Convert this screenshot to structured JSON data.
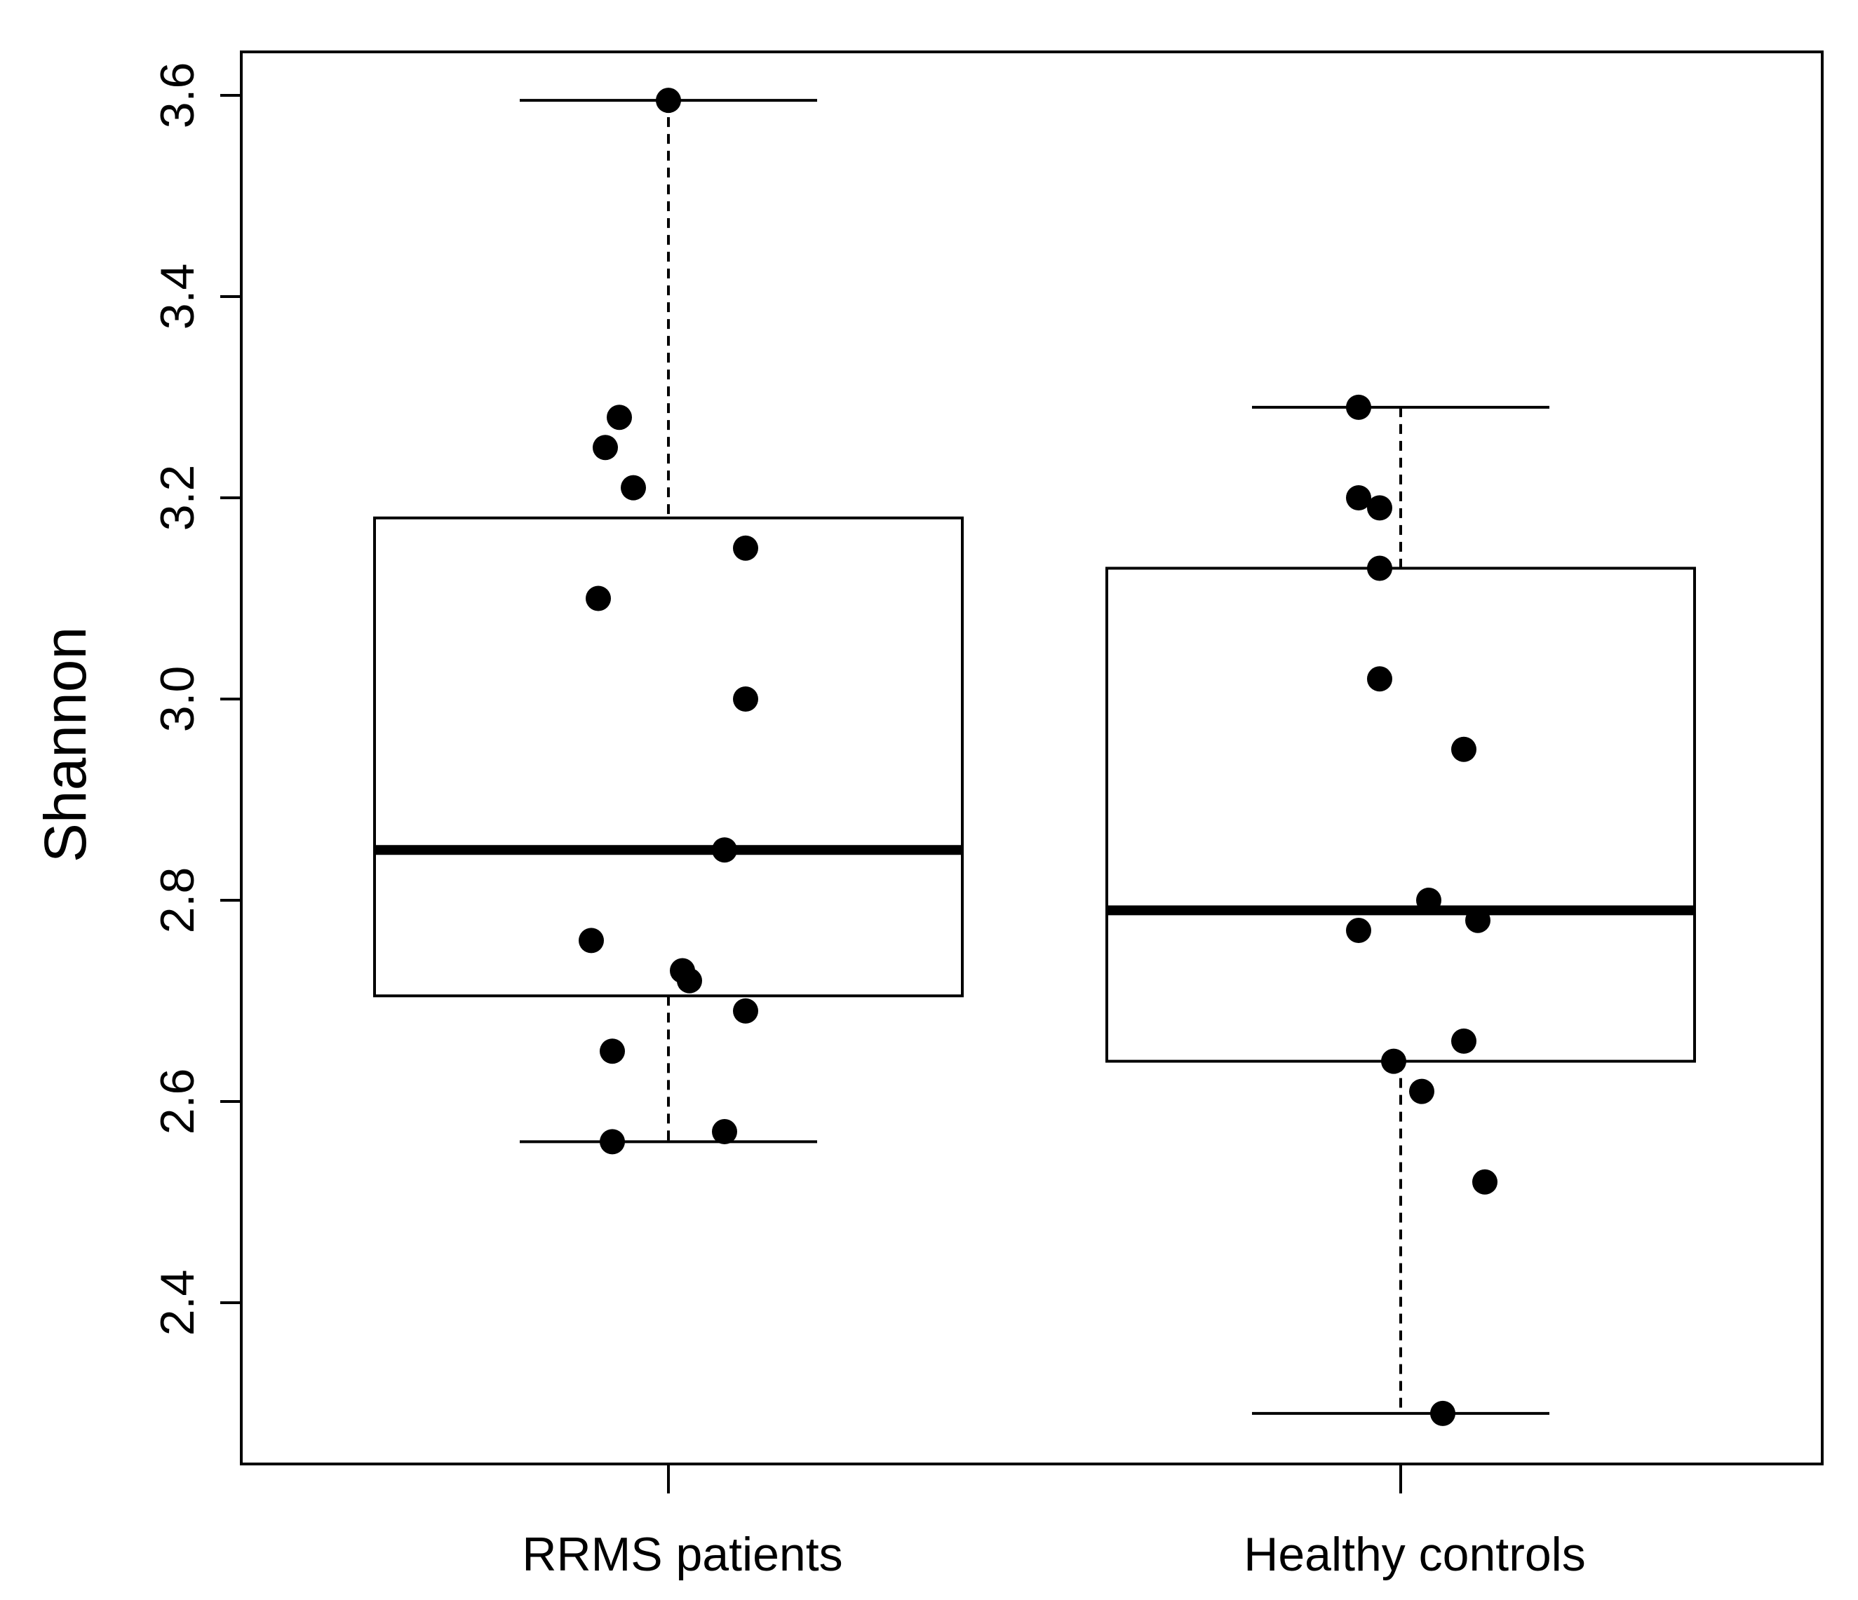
{
  "chart_data": {
    "type": "box",
    "title": "",
    "xlabel": "",
    "ylabel": "Shannon",
    "ylim": [
      2.24,
      3.65
    ],
    "yticks": [
      2.4,
      2.6,
      2.8,
      3.0,
      3.2,
      3.4,
      3.6
    ],
    "ytick_labels": [
      "2.4",
      "2.6",
      "2.8",
      "3.0",
      "3.2",
      "3.4",
      "3.6"
    ],
    "categories": [
      "RRMS patients",
      "Healthy controls"
    ],
    "boxes": [
      {
        "name": "RRMS patients",
        "whisker_low": 2.56,
        "q1": 2.705,
        "median": 2.85,
        "q3": 3.18,
        "whisker_high": 3.595,
        "points": [
          {
            "jitter": 0.0,
            "value": 3.595
          },
          {
            "jitter": -0.07,
            "value": 3.28
          },
          {
            "jitter": -0.09,
            "value": 3.25
          },
          {
            "jitter": -0.05,
            "value": 3.21
          },
          {
            "jitter": 0.11,
            "value": 3.15
          },
          {
            "jitter": -0.1,
            "value": 3.1
          },
          {
            "jitter": 0.11,
            "value": 3.0
          },
          {
            "jitter": 0.08,
            "value": 2.85
          },
          {
            "jitter": -0.11,
            "value": 2.76
          },
          {
            "jitter": 0.02,
            "value": 2.73
          },
          {
            "jitter": 0.03,
            "value": 2.72
          },
          {
            "jitter": 0.11,
            "value": 2.69
          },
          {
            "jitter": -0.08,
            "value": 2.65
          },
          {
            "jitter": 0.08,
            "value": 2.57
          },
          {
            "jitter": -0.08,
            "value": 2.56
          }
        ]
      },
      {
        "name": "Healthy controls",
        "whisker_low": 2.29,
        "q1": 2.64,
        "median": 2.79,
        "q3": 3.13,
        "whisker_high": 3.29,
        "points": [
          {
            "jitter": -0.06,
            "value": 3.29
          },
          {
            "jitter": -0.06,
            "value": 3.2
          },
          {
            "jitter": -0.03,
            "value": 3.19
          },
          {
            "jitter": -0.03,
            "value": 3.13
          },
          {
            "jitter": -0.03,
            "value": 3.02
          },
          {
            "jitter": 0.09,
            "value": 2.95
          },
          {
            "jitter": 0.04,
            "value": 2.8
          },
          {
            "jitter": 0.11,
            "value": 2.78
          },
          {
            "jitter": -0.06,
            "value": 2.77
          },
          {
            "jitter": 0.09,
            "value": 2.66
          },
          {
            "jitter": -0.01,
            "value": 2.64
          },
          {
            "jitter": 0.03,
            "value": 2.61
          },
          {
            "jitter": 0.12,
            "value": 2.52
          },
          {
            "jitter": 0.06,
            "value": 2.29
          }
        ]
      }
    ]
  }
}
